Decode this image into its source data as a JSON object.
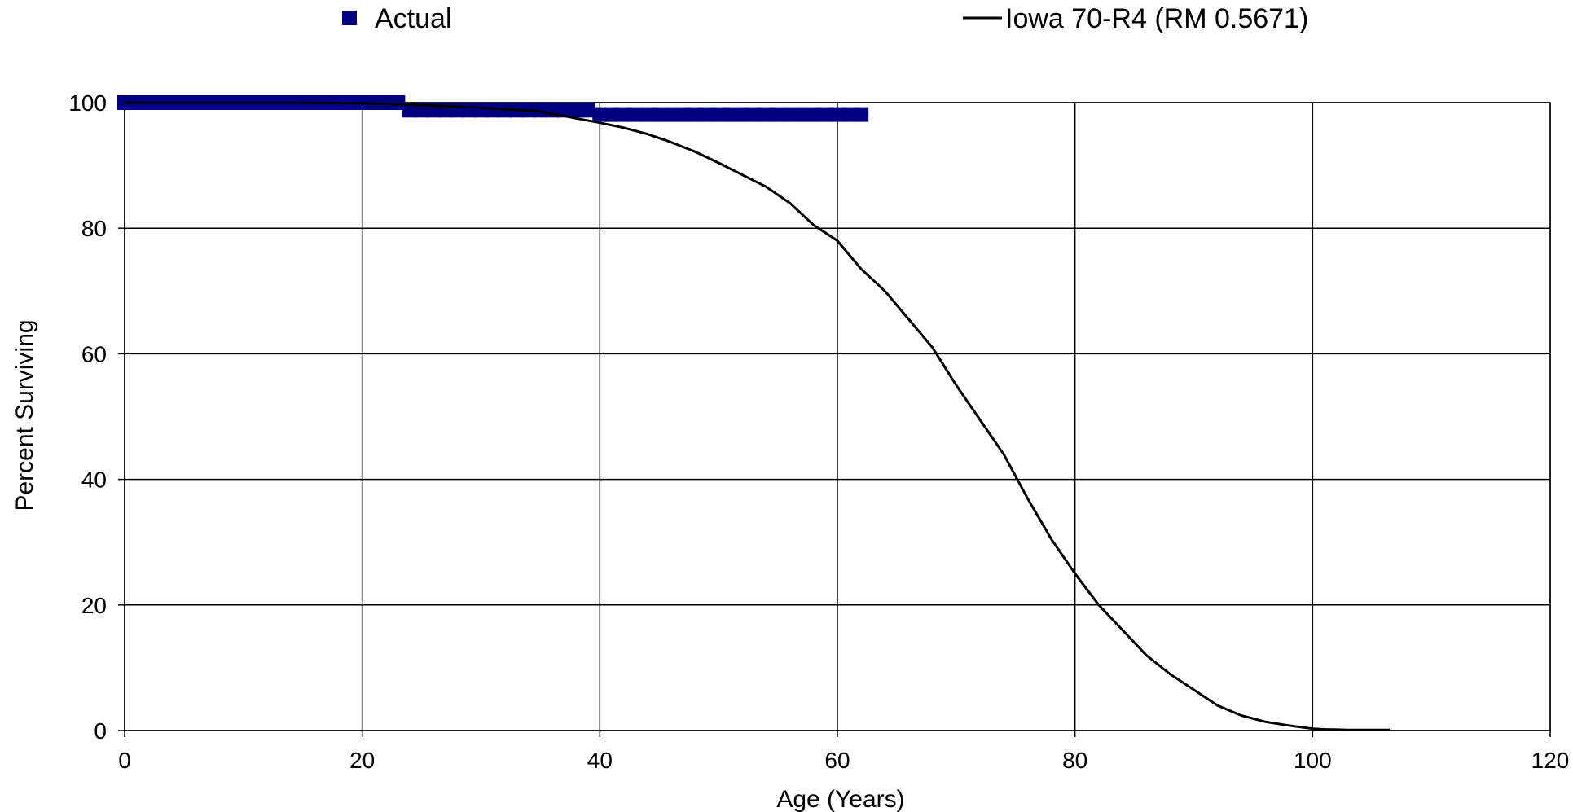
{
  "chart_data": {
    "type": "line",
    "xlabel": "Age (Years)",
    "ylabel": "Percent Surviving",
    "xlim": [
      0,
      120
    ],
    "ylim": [
      0,
      100
    ],
    "x_ticks": [
      0,
      20,
      40,
      60,
      80,
      100,
      120
    ],
    "y_ticks": [
      0,
      20,
      40,
      60,
      80,
      100
    ],
    "x_tick_labels": [
      "0",
      "20",
      "40",
      "60",
      "80",
      "100",
      "120"
    ],
    "y_tick_labels": [
      "0",
      "20",
      "40",
      "60",
      "80",
      "100"
    ],
    "grid": true,
    "legend_position": "top",
    "series": [
      {
        "name": "Actual",
        "style": "markers",
        "color": "#000080",
        "points": [
          [
            0,
            100
          ],
          [
            1,
            100
          ],
          [
            2,
            100
          ],
          [
            3,
            100
          ],
          [
            4,
            100
          ],
          [
            5,
            100
          ],
          [
            6,
            100
          ],
          [
            7,
            100
          ],
          [
            8,
            100
          ],
          [
            9,
            100
          ],
          [
            10,
            100
          ],
          [
            11,
            100
          ],
          [
            12,
            100
          ],
          [
            13,
            100
          ],
          [
            14,
            100
          ],
          [
            15,
            100
          ],
          [
            16,
            100
          ],
          [
            17,
            100
          ],
          [
            18,
            100
          ],
          [
            19,
            100
          ],
          [
            20,
            100
          ],
          [
            21,
            100
          ],
          [
            22,
            100
          ],
          [
            23,
            100
          ],
          [
            24,
            98.8
          ],
          [
            25,
            98.8
          ],
          [
            26,
            98.8
          ],
          [
            27,
            98.8
          ],
          [
            28,
            98.8
          ],
          [
            29,
            98.8
          ],
          [
            30,
            98.8
          ],
          [
            31,
            98.8
          ],
          [
            32,
            98.8
          ],
          [
            33,
            98.8
          ],
          [
            34,
            98.8
          ],
          [
            35,
            98.8
          ],
          [
            36,
            98.8
          ],
          [
            37,
            98.8
          ],
          [
            38,
            98.8
          ],
          [
            39,
            98.8
          ],
          [
            40,
            98.1
          ],
          [
            41,
            98.1
          ],
          [
            42,
            98.1
          ],
          [
            43,
            98.1
          ],
          [
            44,
            98.1
          ],
          [
            45,
            98.1
          ],
          [
            46,
            98.1
          ],
          [
            47,
            98.1
          ],
          [
            48,
            98.1
          ],
          [
            49,
            98.1
          ],
          [
            50,
            98.1
          ],
          [
            51,
            98.1
          ],
          [
            52,
            98.1
          ],
          [
            53,
            98.1
          ],
          [
            54,
            98.1
          ],
          [
            55,
            98.1
          ],
          [
            56,
            98.1
          ],
          [
            57,
            98.1
          ],
          [
            58,
            98.1
          ],
          [
            59,
            98.1
          ],
          [
            60,
            98.1
          ],
          [
            61,
            98.1
          ],
          [
            62,
            98.1
          ]
        ]
      },
      {
        "name": "Iowa 70-R4 (RM 0.5671)",
        "style": "line",
        "color": "#000000",
        "points": [
          [
            0,
            100
          ],
          [
            5,
            100
          ],
          [
            10,
            100
          ],
          [
            15,
            100
          ],
          [
            20,
            99.9
          ],
          [
            25,
            99.6
          ],
          [
            30,
            99.2
          ],
          [
            35,
            98.6
          ],
          [
            38,
            97.5
          ],
          [
            40,
            96.8
          ],
          [
            42,
            96.0
          ],
          [
            44,
            95.0
          ],
          [
            46,
            93.7
          ],
          [
            48,
            92.2
          ],
          [
            50,
            90.4
          ],
          [
            52,
            88.5
          ],
          [
            54,
            86.6
          ],
          [
            56,
            84.0
          ],
          [
            58,
            80.5
          ],
          [
            60,
            78.0
          ],
          [
            62,
            73.5
          ],
          [
            64,
            70.0
          ],
          [
            66,
            65.5
          ],
          [
            68,
            61.0
          ],
          [
            70,
            55.0
          ],
          [
            72,
            49.5
          ],
          [
            74,
            44.0
          ],
          [
            76,
            37.0
          ],
          [
            78,
            30.5
          ],
          [
            80,
            25.0
          ],
          [
            82,
            20.0
          ],
          [
            84,
            16.0
          ],
          [
            86,
            12.0
          ],
          [
            88,
            9.0
          ],
          [
            90,
            6.5
          ],
          [
            92,
            4.0
          ],
          [
            94,
            2.4
          ],
          [
            96,
            1.4
          ],
          [
            98,
            0.8
          ],
          [
            100,
            0.3
          ],
          [
            101,
            0.2
          ],
          [
            103,
            0.1
          ],
          [
            106.5,
            0.1
          ]
        ]
      }
    ]
  }
}
